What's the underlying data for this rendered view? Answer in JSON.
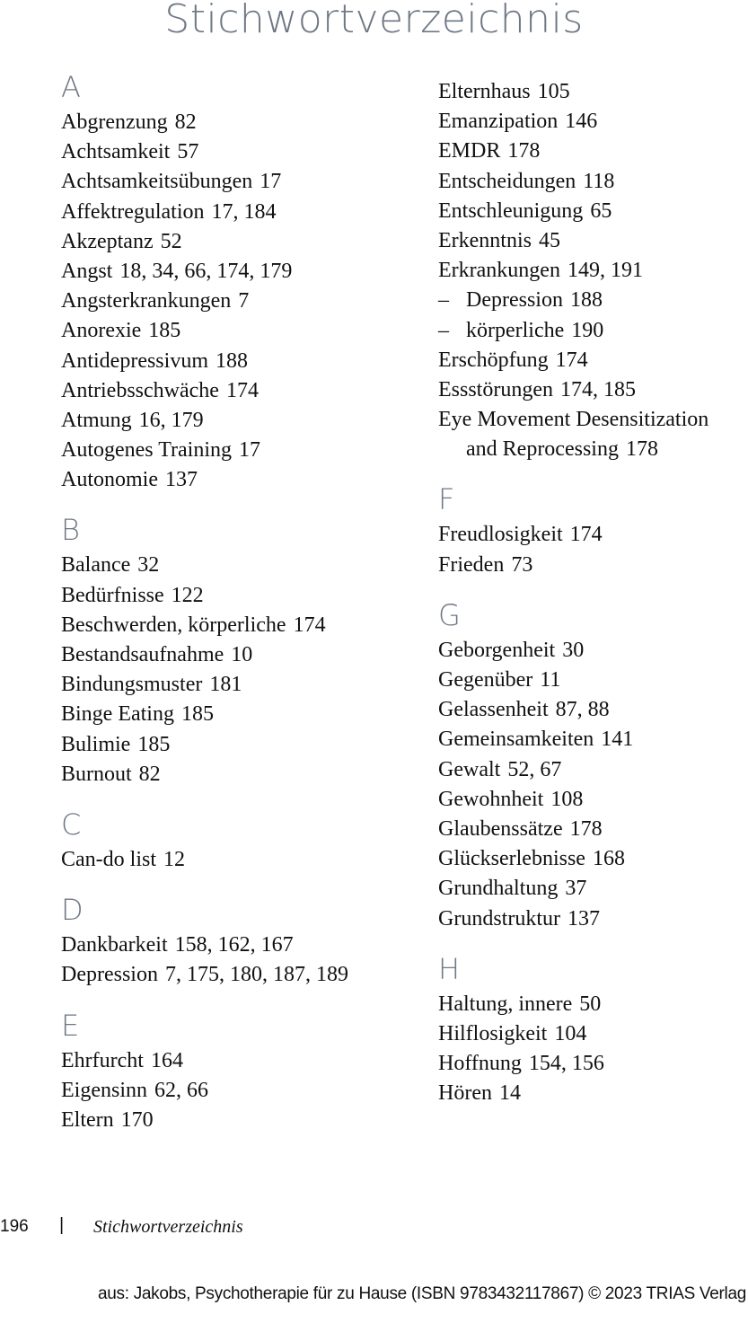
{
  "title": "Stichwortverzeichnis",
  "columns": [
    [
      {
        "heading": "A"
      },
      {
        "term": "Abgrenzung",
        "pages": "82"
      },
      {
        "term": "Achtsamkeit",
        "pages": "57"
      },
      {
        "term": "Achtsamkeitsübungen",
        "pages": "17"
      },
      {
        "term": "Affektregulation",
        "pages": "17, 184"
      },
      {
        "term": "Akzeptanz",
        "pages": "52"
      },
      {
        "term": "Angst",
        "pages": "18, 34, 66, 174, 179"
      },
      {
        "term": "Angsterkrankungen",
        "pages": "7"
      },
      {
        "term": "Anorexie",
        "pages": "185"
      },
      {
        "term": "Antidepressivum",
        "pages": "188"
      },
      {
        "term": "Antriebsschwäche",
        "pages": "174"
      },
      {
        "term": "Atmung",
        "pages": "16, 179"
      },
      {
        "term": "Autogenes Training",
        "pages": "17"
      },
      {
        "term": "Autonomie",
        "pages": "137"
      },
      {
        "heading": "B"
      },
      {
        "term": "Balance",
        "pages": "32"
      },
      {
        "term": "Bedürfnisse",
        "pages": "122"
      },
      {
        "term": "Beschwerden, körperliche",
        "pages": "174"
      },
      {
        "term": "Bestandsaufnahme",
        "pages": "10"
      },
      {
        "term": "Bindungsmuster",
        "pages": "181"
      },
      {
        "term": "Binge Eating",
        "pages": "185"
      },
      {
        "term": "Bulimie",
        "pages": "185"
      },
      {
        "term": "Burnout",
        "pages": "82"
      },
      {
        "heading": "C"
      },
      {
        "term": "Can-do list",
        "pages": "12"
      },
      {
        "heading": "D"
      },
      {
        "term": "Dankbarkeit",
        "pages": "158, 162, 167"
      },
      {
        "term": "Depression",
        "pages": "7, 175, 180, 187, 189"
      },
      {
        "heading": "E"
      },
      {
        "term": "Ehrfurcht",
        "pages": "164"
      },
      {
        "term": "Eigensinn",
        "pages": "62, 66"
      },
      {
        "term": "Eltern",
        "pages": "170"
      }
    ],
    [
      {
        "term": "Elternhaus",
        "pages": "105"
      },
      {
        "term": "Emanzipation",
        "pages": "146"
      },
      {
        "term": "EMDR",
        "pages": "178"
      },
      {
        "term": "Entscheidungen",
        "pages": "118"
      },
      {
        "term": "Entschleunigung",
        "pages": "65"
      },
      {
        "term": "Erkenntnis",
        "pages": "45"
      },
      {
        "term": "Erkrankungen",
        "pages": "149, 191"
      },
      {
        "sub": true,
        "term": "Depression",
        "pages": "188"
      },
      {
        "sub": true,
        "term": "körperliche",
        "pages": "190"
      },
      {
        "term": "Erschöpfung",
        "pages": "174"
      },
      {
        "term": "Essstörungen",
        "pages": "174, 185"
      },
      {
        "term": "Eye Movement Desensitization",
        "pages": ""
      },
      {
        "cont": true,
        "term": "and Reprocessing",
        "pages": "178"
      },
      {
        "heading": "F"
      },
      {
        "term": "Freudlosigkeit",
        "pages": "174"
      },
      {
        "term": "Frieden",
        "pages": "73"
      },
      {
        "heading": "G"
      },
      {
        "term": "Geborgenheit",
        "pages": "30"
      },
      {
        "term": "Gegenüber",
        "pages": "11"
      },
      {
        "term": "Gelassenheit",
        "pages": "87, 88"
      },
      {
        "term": "Gemeinsamkeiten",
        "pages": "141"
      },
      {
        "term": "Gewalt",
        "pages": "52, 67"
      },
      {
        "term": "Gewohnheit",
        "pages": "108"
      },
      {
        "term": "Glaubenssätze",
        "pages": "178"
      },
      {
        "term": "Glückserlebnisse",
        "pages": "168"
      },
      {
        "term": "Grundhaltung",
        "pages": "37"
      },
      {
        "term": "Grundstruktur",
        "pages": "137"
      },
      {
        "heading": "H"
      },
      {
        "term": "Haltung, innere",
        "pages": "50"
      },
      {
        "term": "Hilflosigkeit",
        "pages": "104"
      },
      {
        "term": "Hoffnung",
        "pages": "154, 156"
      },
      {
        "term": "Hören",
        "pages": "14"
      }
    ]
  ],
  "footer": {
    "page_number": "196",
    "separator": "|",
    "running_title": "Stichwortverzeichnis",
    "credit": "aus: Jakobs, Psychotherapie für zu Hause (ISBN 9783432117867) © 2023 TRIAS Verlag"
  }
}
